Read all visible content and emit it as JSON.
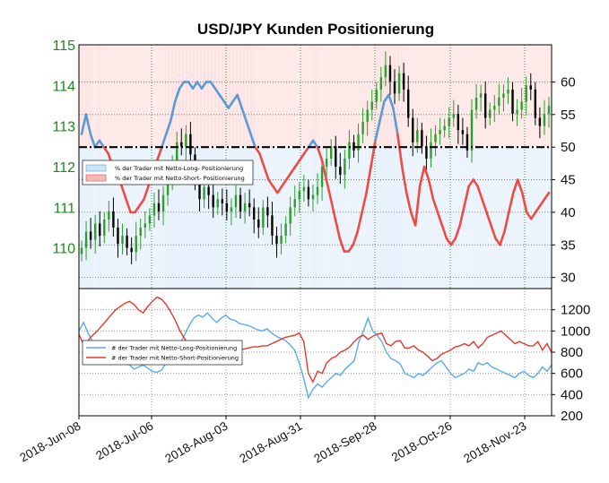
{
  "chart_data": [
    {
      "type": "candlestick+line",
      "title": "USD/JPY Kunden Positionierung",
      "xlabels": [
        "2018-Jun-08",
        "2018-Jul-06",
        "2018-Aug-03",
        "2018-Aug-31",
        "2018-Sep-28",
        "2018-Oct-26",
        "2018-Nov-23"
      ],
      "y_left": {
        "range": [
          109,
          115
        ],
        "ticks": [
          "110",
          "111",
          "112",
          "113",
          "114",
          "115"
        ],
        "color": "#1a8a1a"
      },
      "y_right": {
        "range": [
          28.3,
          65.7
        ],
        "ticks": [
          "30",
          "35",
          "40",
          "45",
          "50",
          "55",
          "60"
        ]
      },
      "reference_line": 50,
      "legend": [
        {
          "label": "% der Trader mit Netto-Long- Positionierung",
          "color": "#5b9bd5"
        },
        {
          "label": "% der Trader mit Netto-Short- Positionierung",
          "color": "#ef4b45"
        }
      ],
      "price_close": [
        110.0,
        110.4,
        110.2,
        110.6,
        110.3,
        110.7,
        110.9,
        110.5,
        110.1,
        110.3,
        110.0,
        109.9,
        110.3,
        110.5,
        110.6,
        110.8,
        111.1,
        110.9,
        111.3,
        111.6,
        112.1,
        112.6,
        112.5,
        112.8,
        112.3,
        111.6,
        111.2,
        111.5,
        111.3,
        111.0,
        111.2,
        111.1,
        110.9,
        111.0,
        111.3,
        110.9,
        111.1,
        111.0,
        110.7,
        110.5,
        111.0,
        110.8,
        110.3,
        110.1,
        110.3,
        110.6,
        111.0,
        111.2,
        111.4,
        111.5,
        111.2,
        111.3,
        111.5,
        112.0,
        112.2,
        112.5,
        112.0,
        111.8,
        112.2,
        112.6,
        112.4,
        112.8,
        113.1,
        113.4,
        113.6,
        113.9,
        114.2,
        114.5,
        114.1,
        113.8,
        114.3,
        113.9,
        113.2,
        112.6,
        112.9,
        112.5,
        112.2,
        112.6,
        112.8,
        112.9,
        113.0,
        113.2,
        113.3,
        112.9,
        112.8,
        112.4,
        113.4,
        113.7,
        113.8,
        113.2,
        113.4,
        113.5,
        113.7,
        113.8,
        113.9,
        113.3,
        113.4,
        113.6,
        114.0,
        113.9,
        113.2,
        113.0,
        113.3,
        113.5
      ],
      "pct_long": [
        55,
        55,
        54,
        53,
        52,
        52,
        51,
        51,
        50,
        49,
        48,
        47,
        46,
        46,
        45,
        44,
        43,
        42,
        41,
        42,
        44,
        46,
        48,
        50,
        53,
        55,
        57,
        59,
        60,
        60,
        59,
        60,
        59,
        60,
        60,
        59,
        59,
        58,
        57,
        56,
        57,
        58,
        59,
        60,
        61,
        62,
        63,
        64,
        65,
        65,
        64,
        63,
        62,
        61,
        60,
        59,
        58,
        57,
        57,
        58,
        59,
        60,
        61,
        62,
        63,
        64,
        65,
        66,
        66,
        65,
        64,
        63,
        62,
        61,
        60,
        59,
        58,
        57,
        56,
        55,
        54,
        53,
        52,
        51,
        50,
        49,
        48,
        48,
        48,
        49,
        50,
        50,
        51,
        52,
        53,
        54,
        55,
        56,
        57,
        58,
        59,
        60,
        59,
        58
      ],
      "pct_long_display": [
        52,
        55,
        52,
        50,
        51,
        50,
        49,
        47,
        46,
        44,
        42,
        40,
        40,
        41,
        42,
        44,
        46,
        48,
        50,
        52,
        54,
        57,
        59,
        60,
        60,
        59,
        60,
        59,
        60,
        60,
        59,
        58,
        57,
        56,
        57,
        58,
        56,
        54,
        52,
        50,
        49,
        47,
        45,
        44,
        43,
        44,
        45,
        46,
        47,
        48,
        49,
        50,
        51,
        50,
        48,
        45,
        42,
        39,
        36,
        34,
        34,
        35,
        37,
        40,
        43,
        47,
        51,
        54,
        57,
        58,
        56,
        52,
        47,
        43,
        40,
        38,
        44,
        47,
        45,
        42,
        40,
        38,
        36,
        35,
        36,
        38,
        41,
        44,
        45,
        44,
        42,
        40,
        38,
        36,
        35,
        37,
        40,
        43,
        45,
        43,
        40,
        39,
        40,
        41,
        42,
        43
      ],
      "pct_short": [
        48,
        45,
        48,
        50,
        49,
        50,
        51,
        53,
        54,
        56,
        58,
        60,
        60,
        59,
        58,
        56,
        54,
        52,
        50,
        48,
        46,
        43,
        41,
        40,
        40,
        41,
        40,
        41,
        40,
        40,
        41,
        42,
        43,
        44,
        43,
        42,
        44,
        46,
        48,
        50,
        51,
        53,
        55,
        56,
        57,
        56,
        55,
        54,
        53,
        52,
        51,
        50,
        49,
        50,
        52,
        55,
        58,
        61,
        64,
        66,
        66,
        65,
        63,
        60,
        57,
        53,
        49,
        46,
        43,
        42,
        44,
        48,
        53,
        57,
        60,
        62,
        56,
        53,
        55,
        58,
        60,
        62,
        64,
        65,
        64,
        62,
        59,
        56,
        55,
        56,
        58,
        60,
        62,
        64,
        65,
        63,
        60,
        57,
        55,
        57,
        60,
        61,
        60,
        59,
        58,
        57
      ]
    },
    {
      "type": "line",
      "y_range": [
        200,
        1400
      ],
      "y_ticks": [
        "200",
        "400",
        "600",
        "800",
        "1000",
        "1200"
      ],
      "legend": [
        {
          "label": "# der Trader mit Netto-Long-Positionierung",
          "color": "#5aaaf0"
        },
        {
          "label": "# der Trader mit Netto-Short-Positionierung",
          "color": "#e8372f"
        }
      ],
      "series": [
        {
          "name": "# der Trader mit Netto-Long-Positionierung",
          "values": [
            1000,
            1080,
            980,
            900,
            870,
            820,
            830,
            760,
            720,
            700,
            690,
            680,
            640,
            660,
            680,
            650,
            620,
            610,
            630,
            700,
            750,
            800,
            880,
            960,
            1050,
            1120,
            1150,
            1130,
            1170,
            1120,
            1080,
            1120,
            1150,
            1110,
            1100,
            1070,
            1060,
            1050,
            1030,
            1010,
            1000,
            1020,
            980,
            950,
            930,
            910,
            870,
            820,
            700,
            550,
            370,
            450,
            500,
            470,
            520,
            560,
            600,
            580,
            640,
            680,
            720,
            900,
            1000,
            1120,
            1000,
            960,
            900,
            800,
            740,
            720,
            690,
            600,
            580,
            560,
            600,
            580,
            620,
            660,
            700,
            720,
            660,
            600,
            560,
            580,
            600,
            640,
            620,
            700,
            680,
            700,
            660,
            640,
            620,
            600,
            580,
            560,
            600,
            620,
            580,
            560,
            600,
            660,
            620,
            680
          ]
        },
        {
          "name": "# der Trader mit Netto-Short-Positionierung",
          "values": [
            970,
            870,
            910,
            960,
            1000,
            1050,
            1100,
            1150,
            1200,
            1230,
            1260,
            1280,
            1250,
            1200,
            1170,
            1230,
            1280,
            1320,
            1300,
            1250,
            1180,
            1100,
            1000,
            930,
            860,
            810,
            800,
            790,
            780,
            800,
            810,
            790,
            790,
            800,
            800,
            820,
            830,
            840,
            850,
            850,
            860,
            860,
            880,
            900,
            920,
            940,
            950,
            960,
            980,
            900,
            600,
            520,
            620,
            600,
            700,
            740,
            760,
            800,
            820,
            850,
            900,
            940,
            960,
            920,
            950,
            970,
            980,
            880,
            860,
            900,
            910,
            840,
            840,
            860,
            820,
            800,
            760,
            720,
            740,
            780,
            800,
            820,
            850,
            860,
            880,
            860,
            900,
            840,
            880,
            940,
            960,
            980,
            1000,
            960,
            920,
            880,
            900,
            880,
            860,
            860,
            900,
            820,
            880,
            800
          ]
        }
      ]
    }
  ]
}
